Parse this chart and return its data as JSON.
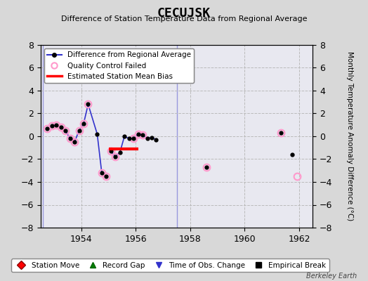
{
  "title": "CECUJSK",
  "subtitle": "Difference of Station Temperature Data from Regional Average",
  "ylabel_right": "Monthly Temperature Anomaly Difference (°C)",
  "background_color": "#d8d8d8",
  "plot_bg_color": "#e8e8f0",
  "xlim": [
    1952.5,
    1962.5
  ],
  "ylim": [
    -8,
    8
  ],
  "yticks": [
    -8,
    -6,
    -4,
    -2,
    0,
    2,
    4,
    6,
    8
  ],
  "xticks": [
    1954,
    1956,
    1958,
    1960,
    1962
  ],
  "watermark": "Berkeley Earth",
  "line_segments": [
    {
      "x": [
        1952.75,
        1952.917,
        1953.083,
        1953.25,
        1953.417,
        1953.583,
        1953.75,
        1953.917,
        1954.083,
        1954.25,
        1954.583,
        1954.75,
        1954.917
      ],
      "y": [
        0.7,
        0.9,
        1.0,
        0.8,
        0.5,
        -0.2,
        -0.5,
        0.5,
        1.1,
        2.8,
        0.2,
        -3.2,
        -3.5
      ]
    },
    {
      "x": [
        1955.083,
        1955.25,
        1955.417,
        1955.583,
        1955.75,
        1955.917,
        1956.083,
        1956.25,
        1956.417,
        1956.583,
        1956.75
      ],
      "y": [
        -1.3,
        -1.8,
        -1.4,
        0.0,
        -0.2,
        -0.2,
        0.2,
        0.1,
        -0.2,
        -0.1,
        -0.3
      ]
    }
  ],
  "isolated_points": {
    "x": [
      1958.583,
      1961.333,
      1961.75
    ],
    "y": [
      -2.7,
      0.3,
      -1.6
    ]
  },
  "qc_failed": {
    "x": [
      1952.75,
      1952.917,
      1953.083,
      1953.25,
      1953.417,
      1953.583,
      1953.75,
      1953.917,
      1954.083,
      1954.25,
      1954.75,
      1954.917,
      1955.083,
      1955.25,
      1955.917,
      1956.083,
      1956.25,
      1958.583,
      1961.333,
      1961.917
    ],
    "y": [
      0.7,
      0.9,
      1.0,
      0.8,
      0.5,
      -0.2,
      -0.5,
      0.5,
      1.1,
      2.8,
      -3.2,
      -3.5,
      -1.3,
      -1.8,
      -0.2,
      0.2,
      0.1,
      -2.7,
      0.3,
      -3.5
    ]
  },
  "vertical_lines": [
    1952.58,
    1957.5
  ],
  "bias_line": {
    "x_start": 1955.0,
    "x_end": 1956.1,
    "y": -1.1
  },
  "line_color": "#3333cc",
  "line_color_light": "#9999dd",
  "marker_color": "black",
  "qc_edge_color": "#ff99cc",
  "bias_color": "red",
  "grid_color": "#bbbbbb",
  "grid_linestyle": "--"
}
